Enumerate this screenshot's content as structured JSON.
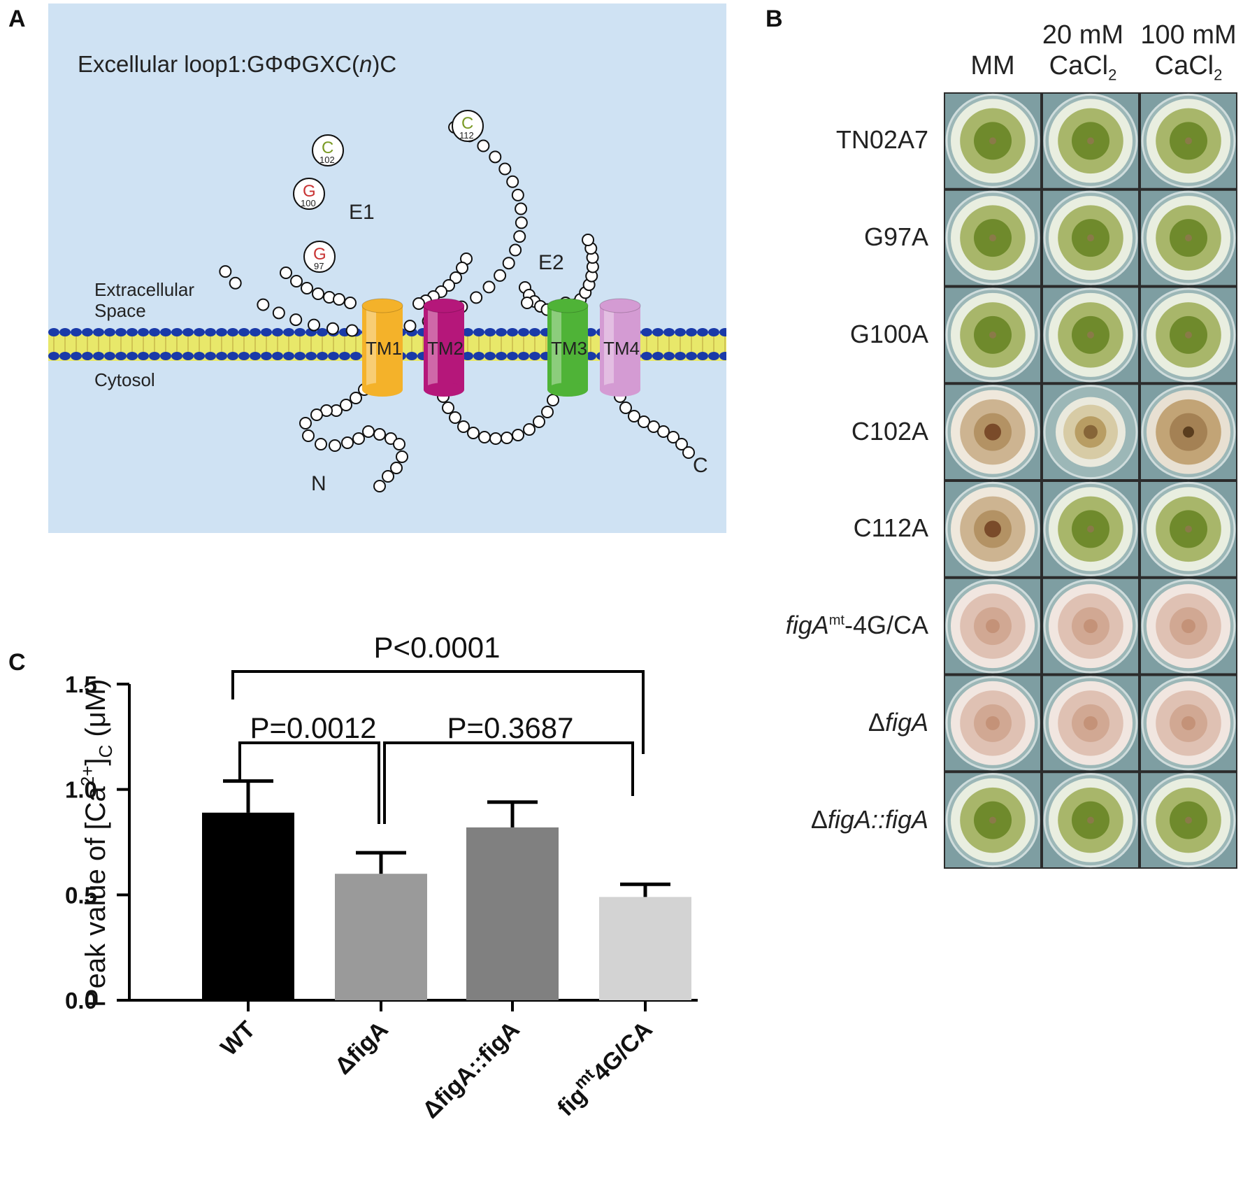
{
  "panel_a": {
    "letter": "A",
    "title_prefix": "Excellular loop1:GΦΦGXC(",
    "title_italic": "n",
    "title_suffix": ")C",
    "extracellular_label_1": "Extracellular",
    "extracellular_label_2": "Space",
    "cytosol_label": "Cytosol",
    "loop_e1": "E1",
    "loop_e2": "E2",
    "n_terminus": "N",
    "c_terminus": "C",
    "helices": [
      {
        "label": "TM1",
        "color": "#f4b22a"
      },
      {
        "label": "TM2",
        "color": "#b5177a"
      },
      {
        "label": "TM3",
        "color": "#4fb337"
      },
      {
        "label": "TM4",
        "color": "#d49bd3"
      }
    ],
    "residues": [
      {
        "letter": "G",
        "number": "97",
        "color": "#c83232"
      },
      {
        "letter": "G",
        "number": "100",
        "color": "#c83232"
      },
      {
        "letter": "C",
        "number": "102",
        "color": "#7a9a25"
      },
      {
        "letter": "C",
        "number": "112",
        "color": "#7a9a25"
      }
    ],
    "background_color": "#cfe2f3"
  },
  "panel_b": {
    "letter": "B",
    "columns": [
      {
        "line1": "",
        "line2": "MM"
      },
      {
        "line1": "20 mM",
        "line2": "CaCl",
        "sub": "2"
      },
      {
        "line1": "100 mM",
        "line2": "CaCl",
        "sub": "2"
      }
    ],
    "rows": [
      {
        "label": "TN02A7",
        "colony": [
          "green",
          "green",
          "green"
        ]
      },
      {
        "label": "G97A",
        "colony": [
          "green",
          "green",
          "green"
        ]
      },
      {
        "label": "G100A",
        "colony": [
          "green",
          "green",
          "green"
        ]
      },
      {
        "label": "C102A",
        "colony": [
          "tan",
          "small",
          "brown"
        ]
      },
      {
        "label": "C112A",
        "colony": [
          "tan",
          "green",
          "green"
        ]
      },
      {
        "label_italic": "figA",
        "label_sup": "mt",
        "label_rest": "-4G/CA",
        "colony": [
          "pink",
          "pink",
          "pink"
        ]
      },
      {
        "label_prefix": "Δ",
        "label_italic": "figA",
        "colony": [
          "pink",
          "pink",
          "pink"
        ]
      },
      {
        "label_prefix": "Δ",
        "label_italic": "figA::figA",
        "colony": [
          "green",
          "green",
          "green"
        ]
      }
    ]
  },
  "panel_c": {
    "letter": "C",
    "ylabel_main": "Peak value of [Ca",
    "ylabel_sup": "2+",
    "ylabel_sub": "C",
    "ylabel_end": " (μM)",
    "significance": [
      {
        "label": "P<0.0001"
      },
      {
        "label": "P=0.0012"
      },
      {
        "label": "P=0.3687"
      }
    ]
  },
  "chart_data": {
    "type": "bar",
    "categories": [
      "WT",
      "ΔfigA",
      "ΔfigA::figA",
      "fig^mt 4G/CA"
    ],
    "category_labels": [
      {
        "text": "WT"
      },
      {
        "text": "ΔfigA"
      },
      {
        "text": "ΔfigA::figA"
      },
      {
        "text": "fig",
        "sup": "mt",
        "rest": "4G/CA"
      }
    ],
    "values": [
      0.89,
      0.6,
      0.82,
      0.49
    ],
    "errors": [
      0.15,
      0.1,
      0.12,
      0.06
    ],
    "colors": [
      "#000000",
      "#9a9a9a",
      "#808080",
      "#d3d3d3"
    ],
    "ylim": [
      0,
      1.5
    ],
    "yticks": [
      "0.0",
      "0.5",
      "1.0",
      "1.5"
    ],
    "ylabel": "Peak value of [Ca2+]C (μM)"
  }
}
